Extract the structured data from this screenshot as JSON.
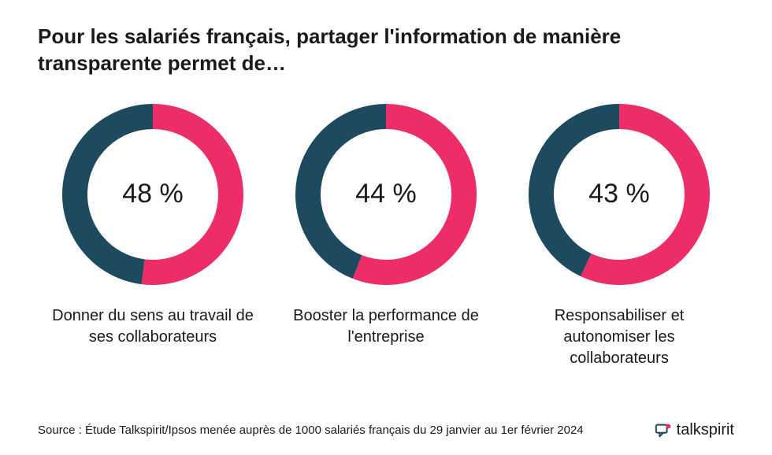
{
  "title": "Pour les salariés français, partager l'information de manière transparente permet de…",
  "charts": [
    {
      "percent": 48,
      "percent_label": "48 %",
      "label": "Donner du sens au travail de ses collaborateurs"
    },
    {
      "percent": 44,
      "percent_label": "44 %",
      "label": "Booster la performance de l'entreprise"
    },
    {
      "percent": 43,
      "percent_label": "43 %",
      "label": "Responsabiliser et autonomiser les collaborateurs"
    }
  ],
  "chart_style": {
    "type": "donut",
    "size": 230,
    "stroke_width": 32,
    "primary_color": "#1e4a5f",
    "secondary_color": "#ed2d68",
    "background_color": "#ffffff",
    "percent_fontsize": 34,
    "label_fontsize": 20,
    "title_fontsize": 26,
    "start_angle_deg": 0
  },
  "source": "Source : Étude Talkspirit/Ipsos menée auprès de 1000 salariés français du 29 janvier au 1er février 2024",
  "brand": {
    "name": "talkspirit",
    "icon_color": "#1e4a5f"
  }
}
